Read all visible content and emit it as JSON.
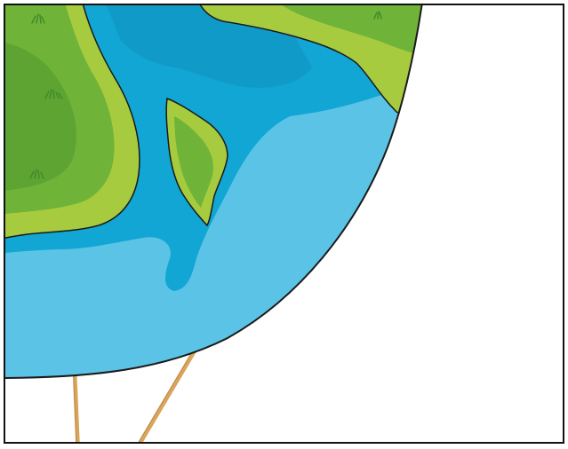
{
  "scene": {
    "description_visible_text": "",
    "colors": {
      "background": "#ffffff",
      "frame_border": "#111111",
      "ocean_light": "#5bc4e6",
      "ocean_deep": "#11a6d4",
      "ocean_deeper": "#0f95c3",
      "land_outer": "#a6cb3e",
      "land_inner": "#6fb338",
      "land_core": "#5ea432",
      "grass_tuft": "#3f8a2a",
      "outline": "#1a1a1a",
      "string": "#d9a55b",
      "string_shadow": "#b98443"
    },
    "elements": [
      "globe-balloon",
      "land-mass",
      "island",
      "balloon-strings",
      "frame"
    ]
  }
}
